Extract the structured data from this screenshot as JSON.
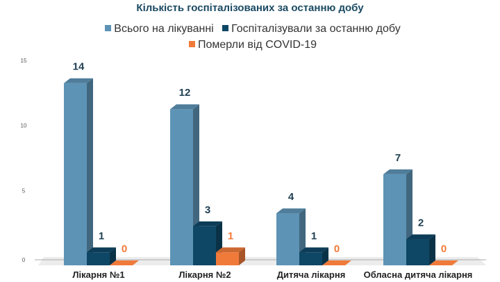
{
  "chart_data": {
    "type": "bar",
    "title": "Кількість госпіталізованих за останню добу",
    "categories": [
      "Лікарня №1",
      "Лікарня №2",
      "Дитяча лікарня",
      "Обласна дитяча лікарня"
    ],
    "series": [
      {
        "name": "Всього на лікуванні",
        "values": [
          14,
          12,
          4,
          7
        ],
        "color": "#5d93b5",
        "label_color": "#1f3f52"
      },
      {
        "name": "Госпіталізували за останню добу",
        "values": [
          1,
          3,
          1,
          2
        ],
        "color": "#0e4766",
        "label_color": "#1f3f52"
      },
      {
        "name": "Померли від COVID-19",
        "values": [
          0,
          1,
          0,
          0
        ],
        "color": "#f07a3a",
        "label_color": "#f07a3a"
      }
    ],
    "yticks": [
      0,
      5,
      10,
      15
    ],
    "ylim": [
      0,
      15
    ],
    "legend": "top"
  }
}
